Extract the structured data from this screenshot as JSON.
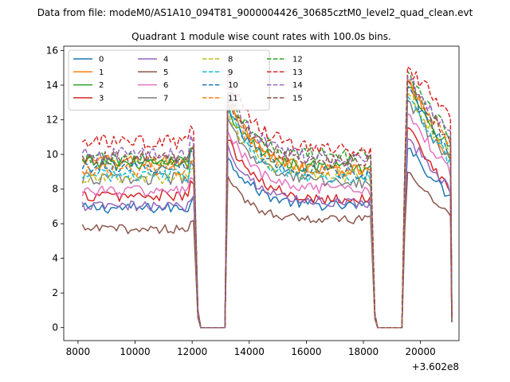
{
  "figure": {
    "suptitle": "Data from file: modeM0/AS1A10_094T81_9000004426_30685cztM0_level2_quad_clean.evt",
    "title": "Quadrant 1 module wise count rates with 100.0s bins.",
    "offset_label": "+3.602e8"
  },
  "chart_data": {
    "type": "line",
    "title": "Quadrant 1 module wise count rates with 100.0s bins.",
    "xlabel": "",
    "ylabel": "",
    "x_offset": 360200000,
    "xlim": [
      7500,
      21350
    ],
    "ylim": [
      -0.75,
      16.25
    ],
    "xticks": [
      8000,
      10000,
      12000,
      14000,
      16000,
      18000,
      20000
    ],
    "xtick_labels": [
      "8000",
      "10000",
      "12000",
      "14000",
      "16000",
      "18000",
      "20000"
    ],
    "yticks": [
      0,
      2,
      4,
      6,
      8,
      10,
      12,
      14,
      16
    ],
    "ytick_labels": [
      "0",
      "2",
      "4",
      "6",
      "8",
      "10",
      "12",
      "14",
      "16"
    ],
    "grid": false,
    "legend_position": "top-left",
    "legend_columns": 4,
    "bin_seconds": 100,
    "segments": [
      {
        "start": 8150,
        "end": 12050,
        "decay_end": 12200
      },
      {
        "start": 13250,
        "end": 18250,
        "decay_end": 18400
      },
      {
        "start": 19450,
        "end": 21050,
        "decay_end": 21100
      }
    ],
    "gap_level": 0.0,
    "series": [
      {
        "name": "0",
        "color": "#1f77b4",
        "dash": "solid",
        "seg1": 6.9,
        "seg2_peak": 10.0,
        "seg2_base": 7.0,
        "seg3_peak": 11.0,
        "seg3_end": 7.5
      },
      {
        "name": "1",
        "color": "#ff7f0e",
        "dash": "solid",
        "seg1": 9.6,
        "seg2_peak": 13.5,
        "seg2_base": 9.0,
        "seg3_peak": 15.2,
        "seg3_end": 9.8
      },
      {
        "name": "2",
        "color": "#2ca02c",
        "dash": "solid",
        "seg1": 9.5,
        "seg2_peak": 12.8,
        "seg2_base": 9.2,
        "seg3_peak": 14.7,
        "seg3_end": 10.2
      },
      {
        "name": "3",
        "color": "#d62728",
        "dash": "solid",
        "seg1": 7.6,
        "seg2_peak": 11.0,
        "seg2_base": 7.4,
        "seg3_peak": 12.3,
        "seg3_end": 7.8
      },
      {
        "name": "4",
        "color": "#9467bd",
        "dash": "solid",
        "seg1": 7.0,
        "seg2_peak": 10.5,
        "seg2_base": 7.2,
        "seg3_peak": 11.5,
        "seg3_end": 8.0
      },
      {
        "name": "5",
        "color": "#8c564b",
        "dash": "solid",
        "seg1": 5.7,
        "seg2_peak": 8.5,
        "seg2_base": 6.2,
        "seg3_peak": 9.5,
        "seg3_end": 6.4
      },
      {
        "name": "6",
        "color": "#e377c2",
        "dash": "solid",
        "seg1": 7.9,
        "seg2_peak": 11.5,
        "seg2_base": 7.9,
        "seg3_peak": 13.0,
        "seg3_end": 9.0
      },
      {
        "name": "7",
        "color": "#7f7f7f",
        "dash": "solid",
        "seg1": 8.6,
        "seg2_peak": 12.0,
        "seg2_base": 8.4,
        "seg3_peak": 13.8,
        "seg3_end": 9.5
      },
      {
        "name": "8",
        "color": "#bcbd22",
        "dash": "dashed",
        "seg1": 8.6,
        "seg2_peak": 12.5,
        "seg2_base": 8.7,
        "seg3_peak": 14.2,
        "seg3_end": 9.8
      },
      {
        "name": "9",
        "color": "#17becf",
        "dash": "dashed",
        "seg1": 8.8,
        "seg2_peak": 12.7,
        "seg2_base": 8.6,
        "seg3_peak": 14.0,
        "seg3_end": 9.6
      },
      {
        "name": "10",
        "color": "#1f77b4",
        "dash": "dashed",
        "seg1": 9.3,
        "seg2_peak": 13.0,
        "seg2_base": 8.9,
        "seg3_peak": 14.6,
        "seg3_end": 10.1
      },
      {
        "name": "11",
        "color": "#ff7f0e",
        "dash": "dashed",
        "seg1": 9.1,
        "seg2_peak": 13.2,
        "seg2_base": 9.1,
        "seg3_peak": 15.0,
        "seg3_end": 10.6
      },
      {
        "name": "12",
        "color": "#2ca02c",
        "dash": "dashed",
        "seg1": 9.7,
        "seg2_peak": 13.6,
        "seg2_base": 9.9,
        "seg3_peak": 15.4,
        "seg3_end": 11.0
      },
      {
        "name": "13",
        "color": "#d62728",
        "dash": "dashed",
        "seg1": 10.7,
        "seg2_peak": 14.7,
        "seg2_base": 10.2,
        "seg3_peak": 15.5,
        "seg3_end": 12.5
      },
      {
        "name": "14",
        "color": "#9467bd",
        "dash": "dashed",
        "seg1": 10.0,
        "seg2_peak": 13.9,
        "seg2_base": 9.7,
        "seg3_peak": 15.0,
        "seg3_end": 11.3
      },
      {
        "name": "15",
        "color": "#8c564b",
        "dash": "dashed",
        "seg1": 9.8,
        "seg2_peak": 13.4,
        "seg2_base": 9.6,
        "seg3_peak": 14.8,
        "seg3_end": 10.9
      }
    ]
  }
}
